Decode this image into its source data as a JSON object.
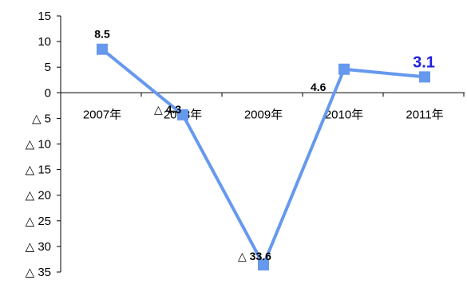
{
  "chart_data": {
    "type": "line",
    "categories": [
      "2007年",
      "2008年",
      "2009年",
      "2010年",
      "2011年"
    ],
    "values": [
      8.5,
      -4.3,
      -33.6,
      4.6,
      3.1
    ],
    "data_labels": [
      "8.5",
      "△ 4.3",
      "△ 33.6",
      "4.6",
      "3.1"
    ],
    "highlighted_label_index": 4,
    "ylim": [
      -35,
      15
    ],
    "yticks": [
      15,
      10,
      5,
      0,
      -5,
      -10,
      -15,
      -20,
      -25,
      -30,
      -35
    ],
    "ytick_labels": [
      "15",
      "10",
      "5",
      "0",
      "△ 5",
      "△ 10",
      "△ 15",
      "△ 20",
      "△ 25",
      "△ 30",
      "△ 35"
    ],
    "xlabel": "",
    "ylabel": "",
    "grid": false,
    "legend": "none",
    "colors": {
      "series": "#6699ee",
      "marker": "#6699ee",
      "highlight_label": "#1f1fe0",
      "axis": "#000000"
    }
  }
}
